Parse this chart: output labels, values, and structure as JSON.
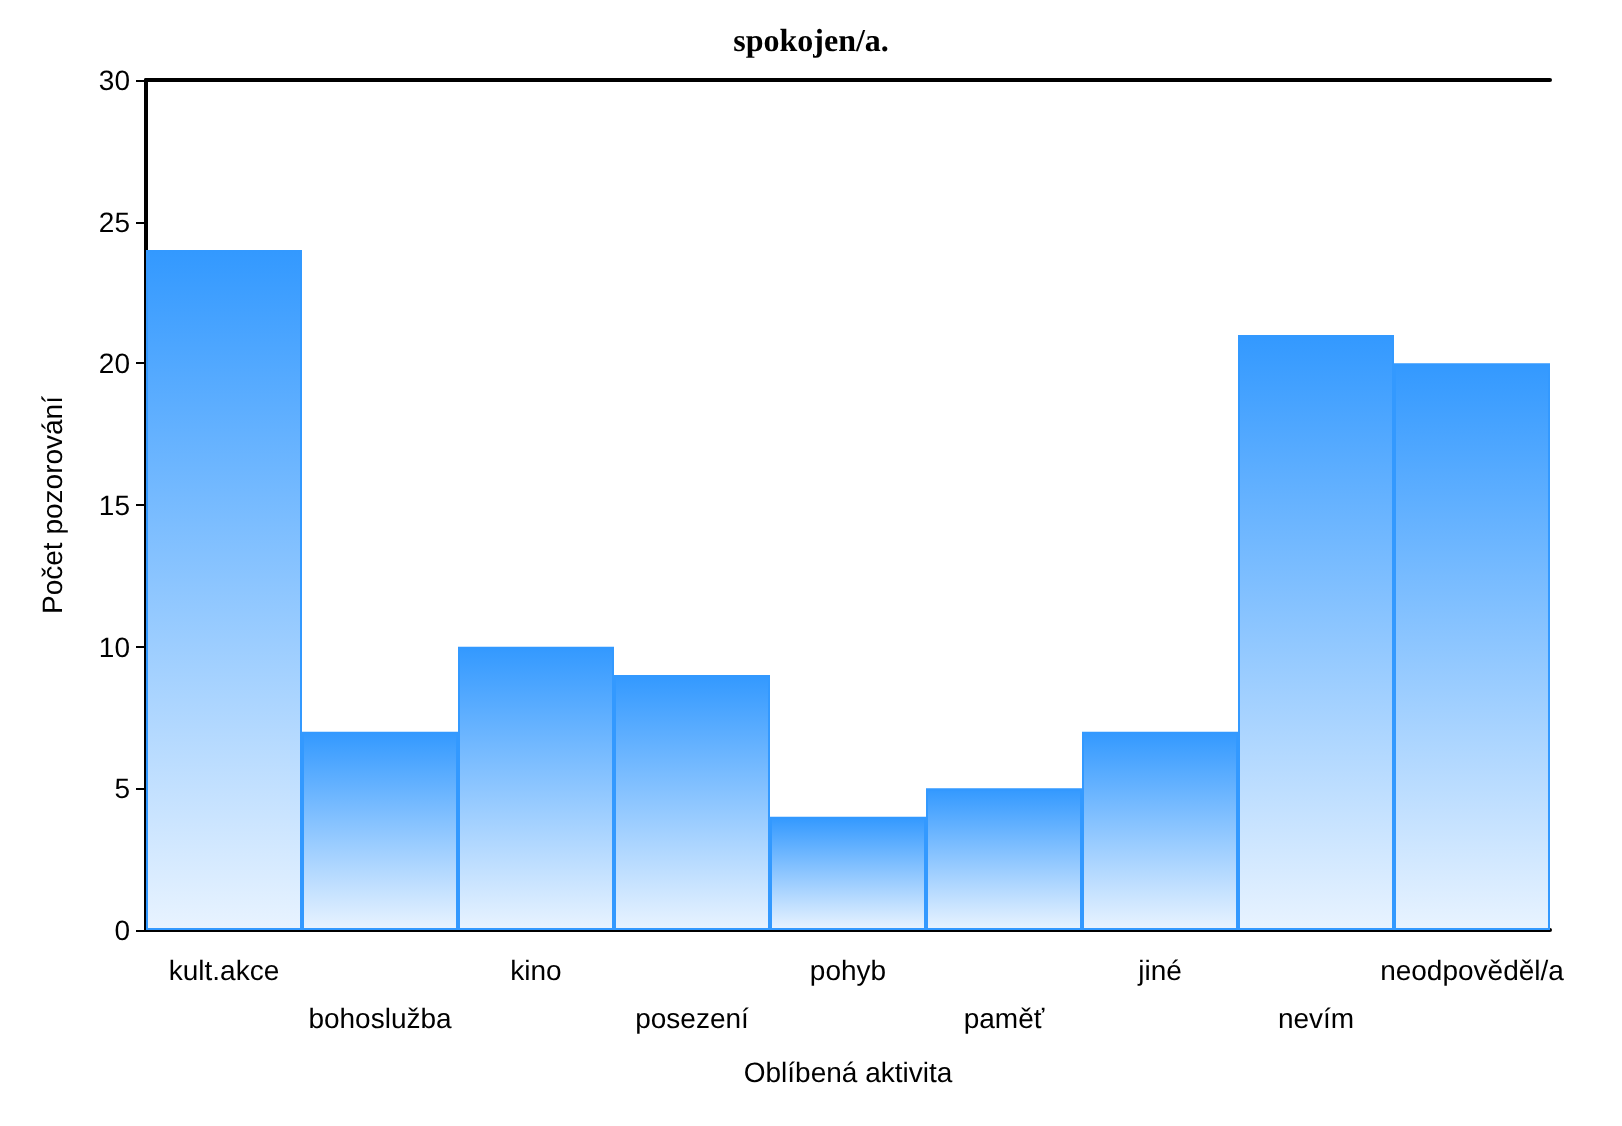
{
  "chart_data": {
    "type": "bar",
    "title": "spokojen/a.",
    "xlabel": "Oblíbená aktivita",
    "ylabel": "Počet pozorování",
    "categories": [
      "kult.akce",
      "bohoslužba",
      "kino",
      "posezení",
      "pohyb",
      "paměť",
      "jiné",
      "nevím",
      "neodpověděl/a"
    ],
    "values": [
      24,
      7,
      10,
      9,
      4,
      5,
      7,
      21,
      20
    ],
    "color": "#3399ff",
    "ylim": [
      0,
      30
    ],
    "yticks": [
      0,
      5,
      10,
      15,
      20,
      25,
      30
    ],
    "grid": false
  }
}
